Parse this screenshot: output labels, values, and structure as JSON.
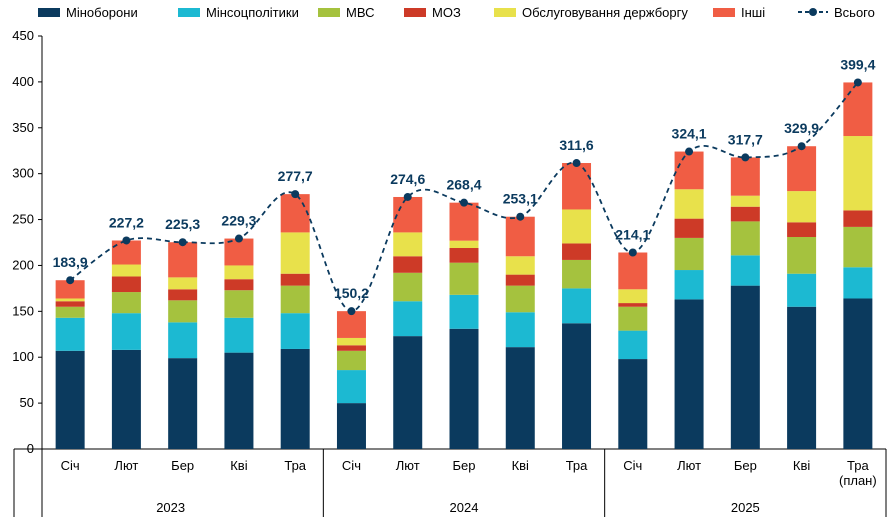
{
  "chart_data": {
    "type": "bar",
    "stacked": true,
    "categories": [
      "Січ",
      "Лют",
      "Бер",
      "Кві",
      "Тра",
      "Січ",
      "Лют",
      "Бер",
      "Кві",
      "Тра",
      "Січ",
      "Лют",
      "Бер",
      "Кві",
      "Тра (план)"
    ],
    "category_lines": [
      [
        "Січ"
      ],
      [
        "Лют"
      ],
      [
        "Бер"
      ],
      [
        "Кві"
      ],
      [
        "Тра"
      ],
      [
        "Січ"
      ],
      [
        "Лют"
      ],
      [
        "Бер"
      ],
      [
        "Кві"
      ],
      [
        "Тра"
      ],
      [
        "Січ"
      ],
      [
        "Лют"
      ],
      [
        "Бер"
      ],
      [
        "Кві"
      ],
      [
        "Тра",
        "(план)"
      ]
    ],
    "groups": [
      {
        "label": "2023",
        "start": 0,
        "end": 4
      },
      {
        "label": "2024",
        "start": 5,
        "end": 9
      },
      {
        "label": "2025",
        "start": 10,
        "end": 14
      }
    ],
    "ylim": [
      0,
      450
    ],
    "yticks": [
      0,
      50,
      100,
      150,
      200,
      250,
      300,
      350,
      400,
      450
    ],
    "grid": false,
    "legend": "top",
    "series": [
      {
        "name": "Міноборони",
        "color": "#0b3a5e",
        "values": [
          107,
          108,
          99,
          105,
          109,
          50,
          123,
          131,
          111,
          137,
          98,
          163,
          178,
          155,
          164
        ]
      },
      {
        "name": "Мінсоцполітики",
        "color": "#1cb9d2",
        "values": [
          36,
          40,
          39,
          38,
          39,
          36,
          38,
          37,
          38,
          38,
          31,
          32,
          33,
          36,
          34
        ]
      },
      {
        "name": "МВС",
        "color": "#a5c23e",
        "values": [
          12,
          23,
          24,
          30,
          30,
          21,
          31,
          35,
          29,
          31,
          26,
          35,
          37,
          40,
          44
        ]
      },
      {
        "name": "МОЗ",
        "color": "#cd3a27",
        "values": [
          6,
          17,
          12,
          12,
          13,
          6,
          18,
          16,
          12,
          18,
          4,
          21,
          16,
          16,
          18
        ]
      },
      {
        "name": "Обслуговування держборгу",
        "color": "#e8e14b",
        "values": [
          3,
          13,
          13,
          15,
          45,
          8,
          26,
          8,
          20,
          37,
          15,
          32,
          12,
          34,
          81
        ]
      },
      {
        "name": "Інші",
        "color": "#f05d44",
        "values": [
          19.9,
          26.2,
          38.3,
          29.3,
          41.7,
          29.2,
          38.6,
          41.4,
          43.1,
          50.6,
          40.1,
          41.1,
          41.7,
          48.9,
          58.4
        ]
      }
    ],
    "total": {
      "name": "Всього",
      "color": "#0b3a5e",
      "values": [
        183.9,
        227.2,
        225.3,
        229.3,
        277.7,
        150.2,
        274.6,
        268.4,
        253.1,
        311.6,
        214.1,
        324.1,
        317.7,
        329.9,
        399.4
      ],
      "labels": [
        "183,9",
        "227,2",
        "225,3",
        "229,3",
        "277,7",
        "150,2",
        "274,6",
        "268,4",
        "253,1",
        "311,6",
        "214,1",
        "324,1",
        "317,7",
        "329,9",
        "399,4"
      ]
    }
  }
}
